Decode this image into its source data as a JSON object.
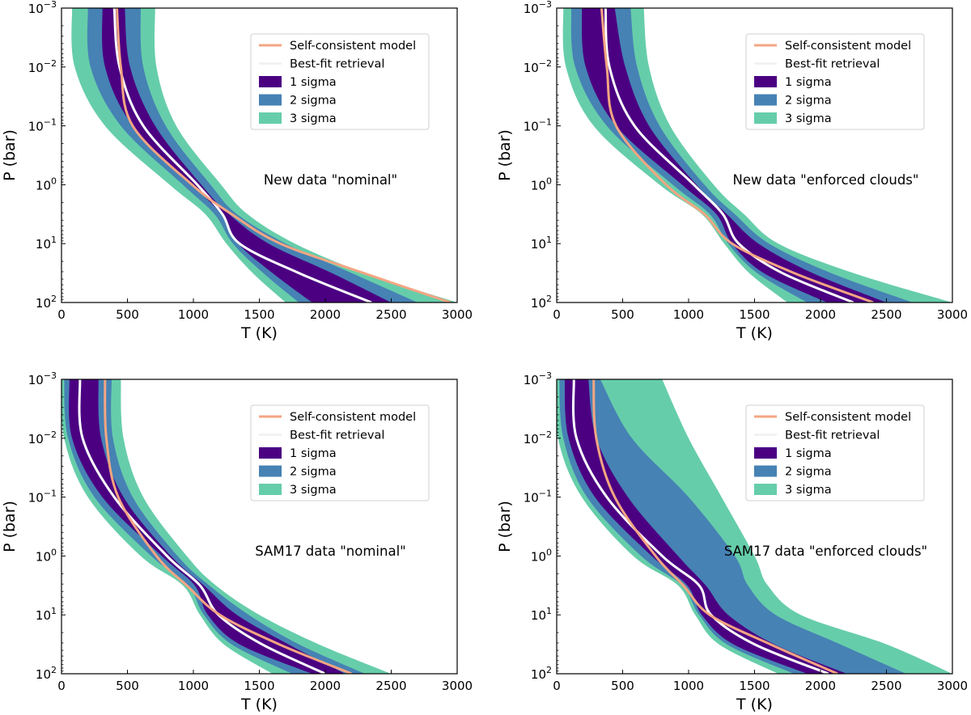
{
  "figure": {
    "layout": "2x2 grid"
  },
  "colors": {
    "sigma3": "#66CDAA",
    "sigma2": "#4682B4",
    "sigma1": "#4B0082",
    "best_fit": "#FFFFFF",
    "model": "#F4A582",
    "axis": "#000000"
  },
  "chart_data": [
    {
      "type": "area",
      "title": "New data \"nominal\"",
      "xlabel": "T (K)",
      "ylabel": "P (bar)",
      "xlim": [
        0,
        3000
      ],
      "ylim_logP": [
        -3,
        2
      ],
      "y_inverted": true,
      "xticks": [
        0,
        500,
        1000,
        1500,
        2000,
        2500,
        3000
      ],
      "yticks": [
        {
          "exp": -3,
          "label": "10",
          "sup": "−3"
        },
        {
          "exp": -2,
          "label": "10",
          "sup": "−2"
        },
        {
          "exp": -1,
          "label": "10",
          "sup": "−1"
        },
        {
          "exp": 0,
          "label": "10",
          "sup": "0"
        },
        {
          "exp": 1,
          "label": "10",
          "sup": "1"
        },
        {
          "exp": 2,
          "label": "10",
          "sup": "2"
        }
      ],
      "legend": {
        "position": "top-right",
        "entries": [
          "Self-consistent model",
          "Best-fit retrieval",
          "1 sigma",
          "2 sigma",
          "3 sigma"
        ]
      },
      "logP": [
        -3,
        -2,
        -1,
        0,
        0.5,
        1,
        1.5,
        2
      ],
      "series": [
        {
          "name": "3 sigma",
          "low": [
            80,
            100,
            330,
            820,
            1090,
            1250,
            1450,
            1700
          ],
          "high": [
            710,
            720,
            870,
            1210,
            1410,
            1770,
            2300,
            3000
          ]
        },
        {
          "name": "2 sigma",
          "low": [
            200,
            220,
            450,
            920,
            1160,
            1300,
            1530,
            1800
          ],
          "high": [
            600,
            620,
            790,
            1130,
            1330,
            1700,
            2200,
            2700
          ]
        },
        {
          "name": "1 sigma",
          "low": [
            310,
            330,
            540,
            990,
            1210,
            1340,
            1600,
            1900
          ],
          "high": [
            480,
            520,
            710,
            1060,
            1270,
            1570,
            2050,
            2500
          ]
        },
        {
          "name": "Best-fit retrieval",
          "x": [
            400,
            440,
            620,
            1030,
            1220,
            1350,
            1800,
            2350
          ]
        },
        {
          "name": "Self-consistent model",
          "x": [
            420,
            450,
            540,
            990,
            1290,
            1660,
            2290,
            2950
          ]
        }
      ]
    },
    {
      "type": "area",
      "title": "New data \"enforced clouds\"",
      "xlabel": "T (K)",
      "ylabel": "P (bar)",
      "xlim": [
        0,
        3000
      ],
      "ylim_logP": [
        -3,
        2
      ],
      "y_inverted": true,
      "xticks": [
        0,
        500,
        1000,
        1500,
        2000,
        2500,
        3000
      ],
      "yticks": [
        {
          "exp": -3,
          "label": "10",
          "sup": "−3"
        },
        {
          "exp": -2,
          "label": "10",
          "sup": "−2"
        },
        {
          "exp": -1,
          "label": "10",
          "sup": "−1"
        },
        {
          "exp": 0,
          "label": "10",
          "sup": "0"
        },
        {
          "exp": 1,
          "label": "10",
          "sup": "1"
        },
        {
          "exp": 2,
          "label": "10",
          "sup": "2"
        }
      ],
      "legend": {
        "position": "top-right",
        "entries": [
          "Self-consistent model",
          "Best-fit retrieval",
          "1 sigma",
          "2 sigma",
          "3 sigma"
        ]
      },
      "logP": [
        -3,
        -2,
        -1,
        0,
        0.5,
        1,
        1.5,
        2
      ],
      "series": [
        {
          "name": "3 sigma",
          "low": [
            50,
            70,
            280,
            780,
            1100,
            1270,
            1460,
            1750
          ],
          "high": [
            660,
            700,
            860,
            1190,
            1420,
            1680,
            2250,
            3000
          ]
        },
        {
          "name": "2 sigma",
          "low": [
            110,
            140,
            380,
            880,
            1160,
            1300,
            1520,
            1900
          ],
          "high": [
            560,
            610,
            780,
            1120,
            1350,
            1610,
            2080,
            2700
          ]
        },
        {
          "name": "1 sigma",
          "low": [
            190,
            220,
            450,
            950,
            1210,
            1330,
            1570,
            2050
          ],
          "high": [
            440,
            520,
            700,
            1060,
            1290,
            1530,
            1940,
            2500
          ]
        },
        {
          "name": "Best-fit retrieval",
          "x": [
            370,
            400,
            590,
            1040,
            1260,
            1380,
            1710,
            2250
          ]
        },
        {
          "name": "Self-consistent model",
          "x": [
            340,
            380,
            450,
            830,
            1120,
            1330,
            1800,
            2400
          ]
        }
      ]
    },
    {
      "type": "area",
      "title": "SAM17 data \"nominal\"",
      "xlabel": "T (K)",
      "ylabel": "P (bar)",
      "xlim": [
        0,
        3000
      ],
      "ylim_logP": [
        -3,
        2
      ],
      "y_inverted": true,
      "xticks": [
        0,
        500,
        1000,
        1500,
        2000,
        2500,
        3000
      ],
      "yticks": [
        {
          "exp": -3,
          "label": "10",
          "sup": "−3"
        },
        {
          "exp": -2,
          "label": "10",
          "sup": "−2"
        },
        {
          "exp": -1,
          "label": "10",
          "sup": "−1"
        },
        {
          "exp": 0,
          "label": "10",
          "sup": "0"
        },
        {
          "exp": 1,
          "label": "10",
          "sup": "1"
        },
        {
          "exp": 2,
          "label": "10",
          "sup": "2"
        }
      ],
      "legend": {
        "position": "top-right",
        "entries": [
          "Self-consistent model",
          "Best-fit retrieval",
          "1 sigma",
          "2 sigma",
          "3 sigma"
        ]
      },
      "logP": [
        -3,
        -2,
        -1,
        0,
        0.5,
        1,
        1.5,
        2
      ],
      "series": [
        {
          "name": "3 sigma",
          "low": [
            0,
            20,
            200,
            600,
            920,
            1050,
            1230,
            1600
          ],
          "high": [
            450,
            470,
            620,
            950,
            1170,
            1500,
            1950,
            2500
          ]
        },
        {
          "name": "2 sigma",
          "low": [
            20,
            50,
            250,
            680,
            960,
            1080,
            1290,
            1750
          ],
          "high": [
            380,
            390,
            540,
            880,
            1120,
            1420,
            1800,
            2300
          ]
        },
        {
          "name": "1 sigma",
          "low": [
            60,
            80,
            310,
            760,
            1010,
            1110,
            1350,
            1900
          ],
          "high": [
            280,
            300,
            470,
            830,
            1080,
            1330,
            1720,
            2150
          ]
        },
        {
          "name": "Best-fit retrieval",
          "x": [
            140,
            160,
            400,
            800,
            1050,
            1190,
            1520,
            2000
          ]
        },
        {
          "name": "Self-consistent model",
          "x": [
            330,
            340,
            430,
            720,
            950,
            1200,
            1650,
            2200
          ]
        }
      ]
    },
    {
      "type": "area",
      "title": "SAM17 data \"enforced clouds\"",
      "xlabel": "T (K)",
      "ylabel": "P (bar)",
      "xlim": [
        0,
        3000
      ],
      "ylim_logP": [
        -3,
        2
      ],
      "y_inverted": true,
      "xticks": [
        0,
        500,
        1000,
        1500,
        2000,
        2500,
        3000
      ],
      "yticks": [
        {
          "exp": -3,
          "label": "10",
          "sup": "−3"
        },
        {
          "exp": -2,
          "label": "10",
          "sup": "−2"
        },
        {
          "exp": -1,
          "label": "10",
          "sup": "−1"
        },
        {
          "exp": 0,
          "label": "10",
          "sup": "0"
        },
        {
          "exp": 1,
          "label": "10",
          "sup": "1"
        },
        {
          "exp": 2,
          "label": "10",
          "sup": "2"
        }
      ],
      "legend": {
        "position": "top-right",
        "entries": [
          "Self-consistent model",
          "Best-fit retrieval",
          "1 sigma",
          "2 sigma",
          "3 sigma"
        ]
      },
      "logP": [
        -3,
        -2,
        -1,
        0,
        0.5,
        1,
        1.5,
        2
      ],
      "series": [
        {
          "name": "3 sigma",
          "low": [
            0,
            10,
            190,
            580,
            920,
            1050,
            1230,
            1680
          ],
          "high": [
            800,
            1000,
            1250,
            1500,
            1600,
            1850,
            2500,
            3000
          ]
        },
        {
          "name": "2 sigma",
          "low": [
            20,
            50,
            230,
            640,
            950,
            1080,
            1290,
            1800
          ],
          "high": [
            330,
            570,
            1000,
            1350,
            1450,
            1660,
            2150,
            2650
          ]
        },
        {
          "name": "1 sigma",
          "low": [
            60,
            90,
            290,
            720,
            990,
            1100,
            1340,
            1900
          ],
          "high": [
            240,
            300,
            540,
            920,
            1130,
            1300,
            1650,
            2200
          ]
        },
        {
          "name": "Best-fit retrieval",
          "x": [
            130,
            150,
            380,
            800,
            1080,
            1170,
            1500,
            2060
          ]
        },
        {
          "name": "Self-consistent model",
          "x": [
            280,
            300,
            440,
            750,
            960,
            1160,
            1620,
            2130
          ]
        }
      ]
    }
  ]
}
